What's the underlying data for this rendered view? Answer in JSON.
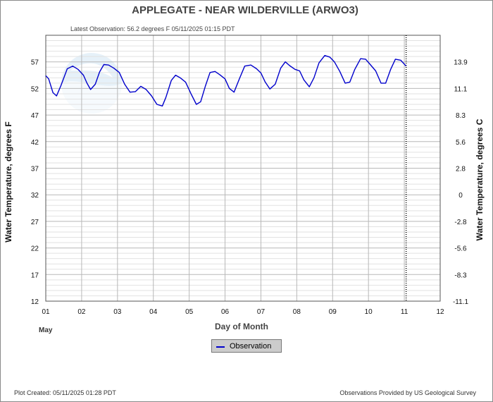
{
  "title": "APPLEGATE - NEAR WILDERVILLE  (ARWO3)",
  "subtitle": "Latest Observation: 56.2 degrees F 05/11/2025 01:15 PDT",
  "footer_left": "Plot Created: 05/11/2025 01:28 PDT",
  "footer_right": "Observations Provided by US Geological Survey",
  "colors": {
    "series": "#0000cc",
    "grid_major": "#b8b8b8",
    "grid_minor": "#e2e2e2"
  },
  "chart_data": {
    "type": "line",
    "title": "APPLEGATE - NEAR WILDERVILLE  (ARWO3)",
    "xlabel": "Day of Month",
    "xlabel_month": "May",
    "ylabel": "Water Temperature, degrees F",
    "ylabel_right": "Water Temperature, degrees C",
    "xlim": [
      1,
      12
    ],
    "ylim": [
      12,
      62
    ],
    "x_ticks": [
      "01",
      "02",
      "03",
      "04",
      "05",
      "06",
      "07",
      "08",
      "09",
      "10",
      "11",
      "12"
    ],
    "y_ticks": [
      "12",
      "17",
      "22",
      "27",
      "32",
      "37",
      "42",
      "47",
      "52",
      "57"
    ],
    "y_ticks_right": [
      {
        "label": "-11.1",
        "f": 12
      },
      {
        "label": "-8.3",
        "f": 17
      },
      {
        "label": "-5.6",
        "f": 22
      },
      {
        "label": "-2.8",
        "f": 27
      },
      {
        "label": "0",
        "f": 32
      },
      {
        "label": "2.8",
        "f": 37
      },
      {
        "label": "5.6",
        "f": 42
      },
      {
        "label": "8.3",
        "f": 47
      },
      {
        "label": "11.1",
        "f": 52
      },
      {
        "label": "13.9",
        "f": 57
      }
    ],
    "grid": true,
    "legend_position": "bottom-center",
    "marker_line_x": 11.05,
    "series": [
      {
        "name": "Observation",
        "x": [
          1.0,
          1.08,
          1.2,
          1.3,
          1.42,
          1.6,
          1.75,
          1.9,
          2.05,
          2.15,
          2.25,
          2.38,
          2.5,
          2.62,
          2.75,
          2.9,
          3.05,
          3.2,
          3.35,
          3.5,
          3.65,
          3.8,
          3.95,
          4.1,
          4.25,
          4.35,
          4.5,
          4.62,
          4.75,
          4.9,
          5.05,
          5.2,
          5.32,
          5.45,
          5.58,
          5.72,
          5.85,
          6.0,
          6.12,
          6.25,
          6.4,
          6.55,
          6.72,
          6.88,
          7.0,
          7.12,
          7.25,
          7.4,
          7.55,
          7.68,
          7.8,
          7.95,
          8.08,
          8.2,
          8.35,
          8.48,
          8.62,
          8.78,
          8.92,
          9.05,
          9.2,
          9.35,
          9.48,
          9.62,
          9.78,
          9.92,
          10.05,
          10.2,
          10.35,
          10.48,
          10.62,
          10.75,
          10.9,
          11.05
        ],
        "y": [
          54.4,
          53.8,
          51.2,
          50.6,
          52.5,
          55.7,
          56.2,
          55.6,
          54.5,
          53.0,
          51.8,
          52.8,
          55.1,
          56.5,
          56.4,
          55.8,
          55.0,
          52.8,
          51.3,
          51.4,
          52.4,
          51.8,
          50.6,
          49.0,
          48.7,
          50.3,
          53.5,
          54.5,
          54.0,
          53.2,
          51.0,
          49.0,
          49.5,
          52.4,
          55.0,
          55.2,
          54.6,
          53.8,
          52.0,
          51.3,
          53.8,
          56.2,
          56.4,
          55.7,
          54.9,
          53.2,
          51.9,
          52.8,
          55.8,
          57.0,
          56.3,
          55.6,
          55.3,
          53.6,
          52.3,
          54.0,
          56.8,
          58.2,
          57.9,
          57.0,
          55.2,
          53.0,
          53.2,
          55.6,
          57.6,
          57.5,
          56.5,
          55.3,
          53.0,
          53.0,
          55.6,
          57.5,
          57.3,
          56.2
        ]
      }
    ]
  }
}
